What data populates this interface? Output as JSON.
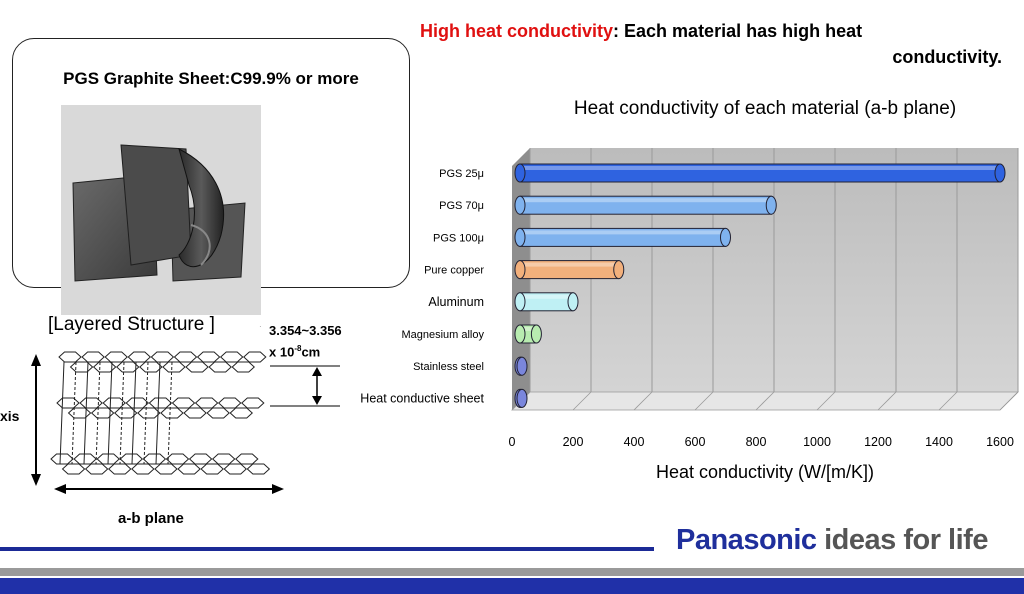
{
  "headline": {
    "highlight": "High heat conductivity",
    "rest_line1": ": Each material has high heat",
    "rest_line2": "conductivity."
  },
  "photo": {
    "title": "PGS Graphite Sheet:C99.9% or more"
  },
  "layered": {
    "title": "[Layered Structure ]",
    "dot": "·",
    "spacing_line1": "3.354~3.356",
    "spacing_line2_prefix": "x 10",
    "spacing_exp": "-8",
    "spacing_unit": "cm",
    "axis_label": "xis",
    "plane_label": "a-b plane"
  },
  "chart_data": {
    "type": "bar",
    "orientation": "horizontal",
    "title": "Heat conductivity of each material (a-b plane)",
    "xlabel": "Heat conductivity (W/[m/K])",
    "ylabel": "",
    "xlim": [
      0,
      1600
    ],
    "xticks": [
      0,
      200,
      400,
      600,
      800,
      1000,
      1200,
      1400,
      1600
    ],
    "grid": true,
    "categories": [
      "PGS 25μ",
      "PGS 70μ",
      "PGS 100μ",
      "Pure copper",
      "Aluminum",
      "Magnesium alloy",
      "Stainless steel",
      "Heat conductive sheet"
    ],
    "values": [
      1600,
      850,
      700,
      350,
      200,
      80,
      16,
      5
    ],
    "colors": [
      "#2f63e0",
      "#7fb2ee",
      "#7fb2ee",
      "#f2b07c",
      "#bff0f4",
      "#b8ecb0",
      "#7a86dc",
      "#7a86dc"
    ]
  },
  "footer": {
    "brand": "Panasonic",
    "tagline": " ideas for life",
    "brand_color": "#1f2f9c",
    "bar_color": "#2030a8"
  }
}
